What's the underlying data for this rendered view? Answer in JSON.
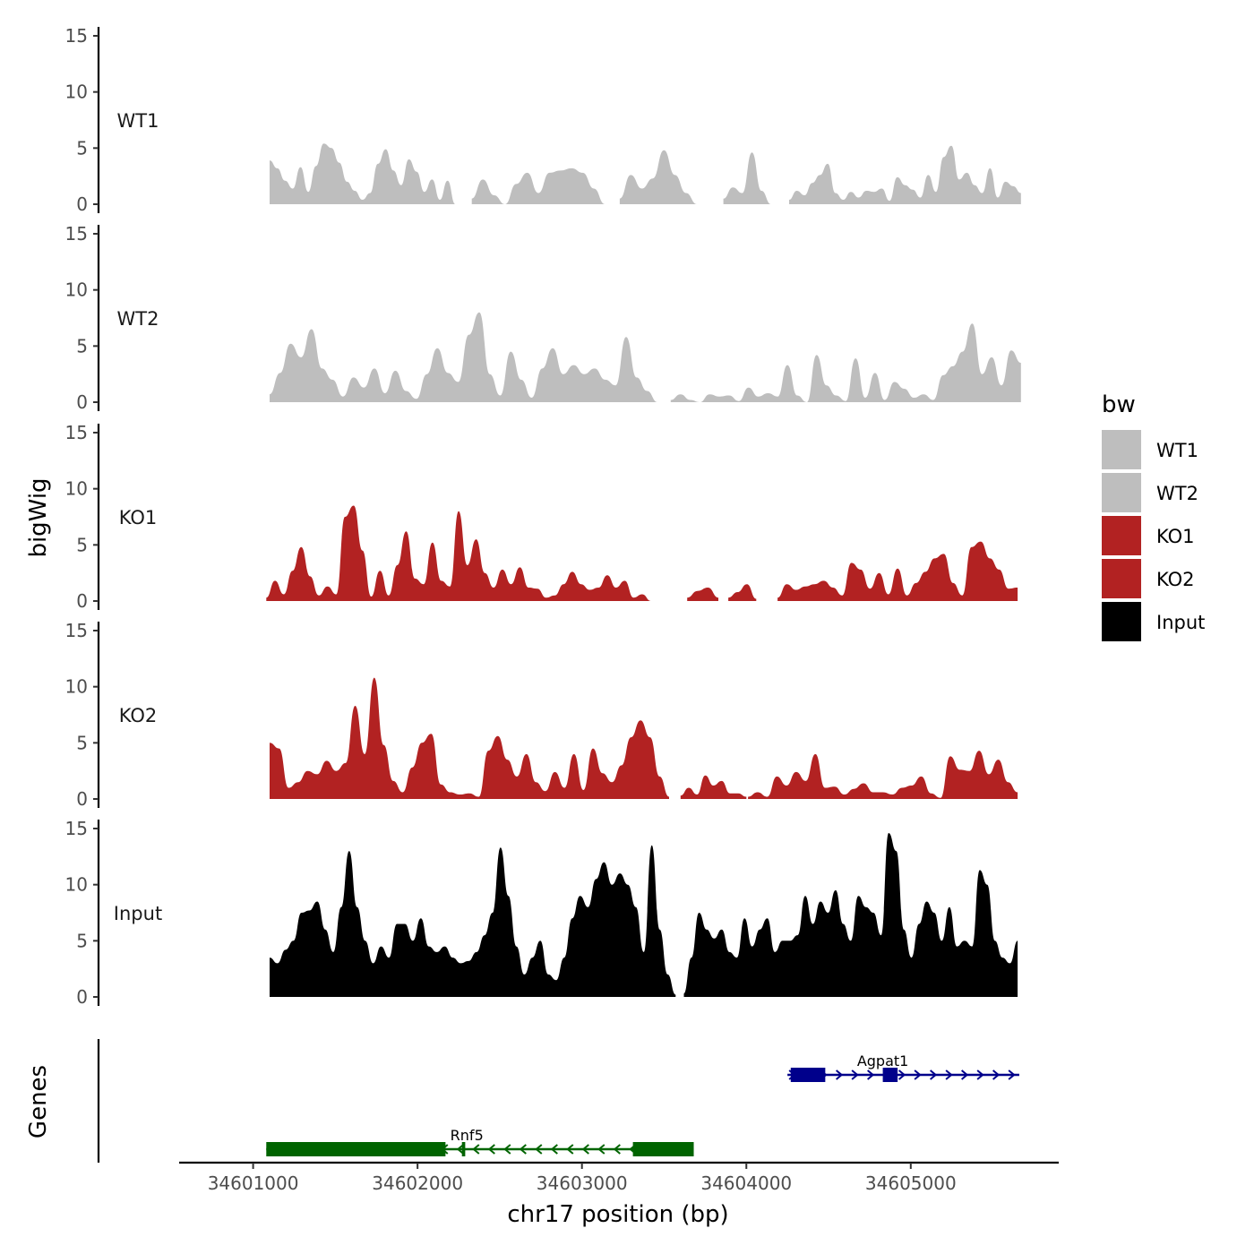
{
  "chart_data": {
    "type": "area",
    "xlabel": "chr17 position (bp)",
    "ylabel": "bigWig",
    "genes_label": "Genes",
    "xlim": [
      34600550,
      34605900
    ],
    "ylim": [
      0,
      15
    ],
    "x_ticks": [
      34601000,
      34602000,
      34603000,
      34604000,
      34605000
    ],
    "x_tick_labels": [
      "34601000",
      "34602000",
      "34603000",
      "34604000",
      "34605000"
    ],
    "y_ticks": [
      0,
      5,
      10,
      15
    ],
    "y_tick_labels": [
      "0",
      "5",
      "10",
      "15"
    ],
    "legend": {
      "title": "bw",
      "entries": [
        {
          "name": "WT1",
          "color": "#bebebe"
        },
        {
          "name": "WT2",
          "color": "#bebebe"
        },
        {
          "name": "KO1",
          "color": "#b22222"
        },
        {
          "name": "KO2",
          "color": "#b22222"
        },
        {
          "name": "Input",
          "color": "#000000"
        }
      ]
    },
    "series": [
      {
        "name": "WT1",
        "color": "#bebebe",
        "segments": [
          {
            "x0": 34601100,
            "x1": 34602230,
            "values": [
              3.9,
              3.2,
              2.1,
              1.4,
              3.3,
              1.1,
              3.4,
              5.4,
              5.0,
              3.7,
              2.0,
              1.2,
              0.4,
              1.0,
              3.6,
              4.9,
              3.0,
              1.7,
              4.0,
              2.9,
              1.1,
              2.2,
              0.4,
              2.1,
              0
            ]
          },
          {
            "x0": 34602330,
            "x1": 34603140,
            "values": [
              0.5,
              2.2,
              0.8,
              0,
              1.8,
              2.8,
              1.0,
              2.8,
              3.0,
              3.2,
              2.8,
              1.4,
              0
            ]
          },
          {
            "x0": 34603230,
            "x1": 34603700,
            "values": [
              0.5,
              2.6,
              1.4,
              2.3,
              4.8,
              2.6,
              1.0,
              0
            ]
          },
          {
            "x0": 34603860,
            "x1": 34604150,
            "values": [
              0.5,
              1.5,
              1.0,
              4.6,
              1.2,
              0
            ]
          },
          {
            "x0": 34604260,
            "x1": 34605670,
            "values": [
              0.4,
              1.2,
              0.8,
              1.9,
              2.6,
              3.6,
              1.0,
              0.4,
              1.1,
              0.6,
              1.2,
              1.1,
              1.4,
              0.3,
              2.4,
              1.7,
              1.3,
              0.6,
              2.6,
              1.1,
              4.2,
              5.2,
              2.2,
              2.8,
              1.7,
              1.0,
              3.2,
              0.6,
              2.0,
              1.6,
              1.0
            ]
          }
        ]
      },
      {
        "name": "WT2",
        "color": "#bebebe",
        "segments": [
          {
            "x0": 34601100,
            "x1": 34603460,
            "values": [
              0.7,
              2.6,
              5.2,
              4.0,
              6.5,
              3.0,
              2.0,
              0.5,
              2.2,
              1.3,
              3.0,
              0.8,
              2.8,
              1.0,
              0.3,
              2.5,
              4.8,
              2.6,
              1.8,
              6.0,
              8.0,
              2.5,
              0.6,
              4.5,
              2.0,
              0.4,
              3.0,
              4.8,
              2.5,
              3.3,
              2.5,
              3.0,
              2.0,
              1.5,
              5.8,
              2.2,
              1.0,
              0
            ]
          },
          {
            "x0": 34603540,
            "x1": 34605670,
            "values": [
              0.2,
              0.7,
              0.2,
              0,
              0.7,
              0.5,
              0.6,
              0.1,
              1.3,
              0.5,
              0.8,
              0.5,
              3.3,
              0.6,
              0,
              4.2,
              1.5,
              0.6,
              0.1,
              3.9,
              0.4,
              2.6,
              0.2,
              1.8,
              1.2,
              0.4,
              0.7,
              0.2,
              2.4,
              3.2,
              4.5,
              7.0,
              2.5,
              4.0,
              1.5,
              4.6,
              3.5
            ]
          }
        ]
      },
      {
        "name": "KO1",
        "color": "#b22222",
        "segments": [
          {
            "x0": 34601080,
            "x1": 34603420,
            "values": [
              0.3,
              1.8,
              0.6,
              2.7,
              4.8,
              2.2,
              0.5,
              1.3,
              0.6,
              7.5,
              8.5,
              4.5,
              0.4,
              2.7,
              0.5,
              3.2,
              6.2,
              2.0,
              1.5,
              5.2,
              1.8,
              1.3,
              8.0,
              3.2,
              5.5,
              2.5,
              1.2,
              2.8,
              1.5,
              3.0,
              1.2,
              1.1,
              0.3,
              0.5,
              1.5,
              2.6,
              1.5,
              1.0,
              1.2,
              2.3,
              1.2,
              1.8,
              0.3,
              0.6,
              0
            ]
          },
          {
            "x0": 34603640,
            "x1": 34603830,
            "values": [
              0.3,
              0.9,
              1.2,
              0.3
            ]
          },
          {
            "x0": 34603890,
            "x1": 34604060,
            "values": [
              0.3,
              0.8,
              1.5,
              0.2
            ]
          },
          {
            "x0": 34604190,
            "x1": 34605650,
            "values": [
              0.3,
              1.5,
              1.0,
              1.3,
              1.5,
              1.8,
              1.2,
              0.5,
              3.4,
              2.8,
              1.1,
              2.5,
              0.6,
              2.9,
              0.5,
              1.6,
              2.6,
              3.8,
              4.2,
              1.6,
              0.5,
              4.8,
              5.3,
              3.8,
              2.8,
              1.1,
              1.2
            ]
          }
        ]
      },
      {
        "name": "KO2",
        "color": "#b22222",
        "segments": [
          {
            "x0": 34601100,
            "x1": 34603530,
            "values": [
              5.0,
              4.5,
              1.0,
              1.5,
              2.5,
              2.2,
              3.4,
              2.5,
              3.2,
              8.3,
              4.0,
              10.8,
              4.8,
              1.6,
              0.6,
              2.8,
              5.0,
              5.8,
              1.3,
              0.6,
              0.4,
              0.5,
              0.2,
              4.3,
              5.6,
              3.5,
              2.0,
              4.0,
              1.5,
              0.7,
              2.4,
              1.0,
              4.0,
              0.8,
              4.5,
              2.3,
              1.5,
              3.0,
              5.5,
              7.0,
              5.5,
              2.0,
              0.2
            ]
          },
          {
            "x0": 34603600,
            "x1": 34604000,
            "values": [
              0.3,
              1.0,
              0.4,
              2.1,
              1.2,
              1.6,
              0.5,
              0.5,
              0.2
            ]
          },
          {
            "x0": 34604010,
            "x1": 34605650,
            "values": [
              0.2,
              0.6,
              0.2,
              2.0,
              1.2,
              2.4,
              1.6,
              4.0,
              1.0,
              1.1,
              0.4,
              0.9,
              1.4,
              0.6,
              0.6,
              0.4,
              1.0,
              1.2,
              2.0,
              0.5,
              0.1,
              3.8,
              2.6,
              2.5,
              4.3,
              2.2,
              3.5,
              1.5,
              0.6
            ]
          }
        ]
      },
      {
        "name": "Input",
        "color": "#000000",
        "segments": [
          {
            "x0": 34601100,
            "x1": 34603570,
            "values": [
              3.5,
              3.0,
              4.2,
              5.0,
              7.5,
              7.7,
              8.5,
              6.0,
              4.0,
              8.0,
              13.0,
              8.0,
              5.0,
              3.0,
              4.5,
              3.5,
              6.5,
              6.5,
              5.0,
              7.0,
              4.5,
              4.0,
              4.5,
              3.5,
              3.0,
              3.2,
              4.0,
              5.5,
              7.5,
              13.3,
              9.0,
              4.5,
              2.0,
              3.5,
              5.0,
              2.0,
              1.5,
              3.5,
              7.0,
              9.0,
              8.0,
              10.5,
              12.0,
              10.0,
              11.0,
              10.0,
              8.0,
              4.0,
              13.5,
              6.0,
              2.0,
              0.2
            ]
          },
          {
            "x0": 34603620,
            "x1": 34605650,
            "values": [
              0.3,
              3.5,
              7.5,
              6.0,
              5.2,
              6.0,
              4.0,
              3.5,
              7.0,
              4.5,
              6.0,
              7.0,
              4.0,
              5.0,
              5.0,
              5.5,
              9.0,
              6.5,
              8.5,
              7.5,
              9.5,
              6.5,
              5.0,
              9.0,
              8.0,
              7.5,
              5.5,
              14.6,
              13.0,
              6.0,
              3.5,
              6.5,
              8.5,
              7.5,
              5.0,
              8.0,
              4.5,
              5.0,
              4.5,
              11.3,
              10.0,
              5.0,
              3.5,
              3.0,
              5.0
            ]
          }
        ]
      }
    ],
    "genes": [
      {
        "name": "Rnf5",
        "color": "#006400",
        "strand": "-",
        "row": "lower",
        "start": 34601080,
        "end": 34603680,
        "label_x": 34602300,
        "exons": [
          {
            "start": 34601080,
            "end": 34602170
          },
          {
            "start": 34602270,
            "end": 34602290
          },
          {
            "start": 34603310,
            "end": 34603680
          }
        ]
      },
      {
        "name": "Agpat1",
        "color": "#00008b",
        "strand": "+",
        "row": "upper",
        "start": 34604250,
        "end": 34605660,
        "label_x": 34604830,
        "exons": [
          {
            "start": 34604270,
            "end": 34604480
          },
          {
            "start": 34604830,
            "end": 34604920
          }
        ]
      }
    ]
  }
}
